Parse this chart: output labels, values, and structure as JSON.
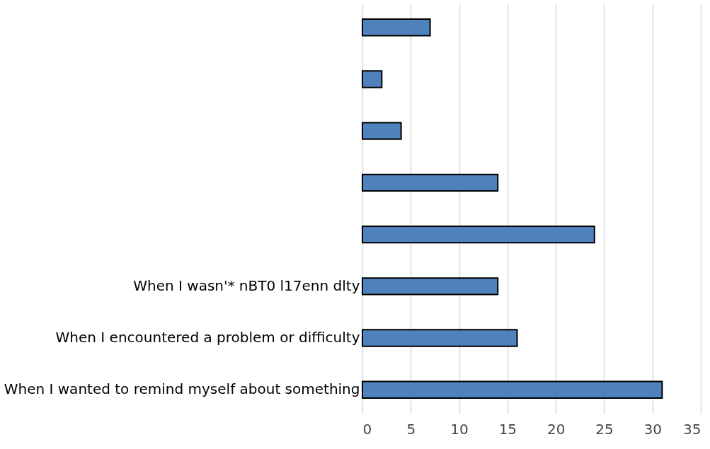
{
  "chart_data": {
    "type": "bar",
    "orientation": "horizontal",
    "categories": [
      null,
      null,
      null,
      null,
      null,
      "When I wasn'* nBT0 l17enn dlty",
      "When I encountered a problem or difficulty",
      "When I wanted to remind myself about something"
    ],
    "values": [
      7,
      2,
      4,
      14,
      24,
      14,
      16,
      31
    ],
    "color": "#4f81bd",
    "xlim": [
      0,
      35
    ],
    "xticks": [
      0,
      5,
      10,
      15,
      20,
      25,
      30,
      35
    ],
    "grid": "x"
  }
}
